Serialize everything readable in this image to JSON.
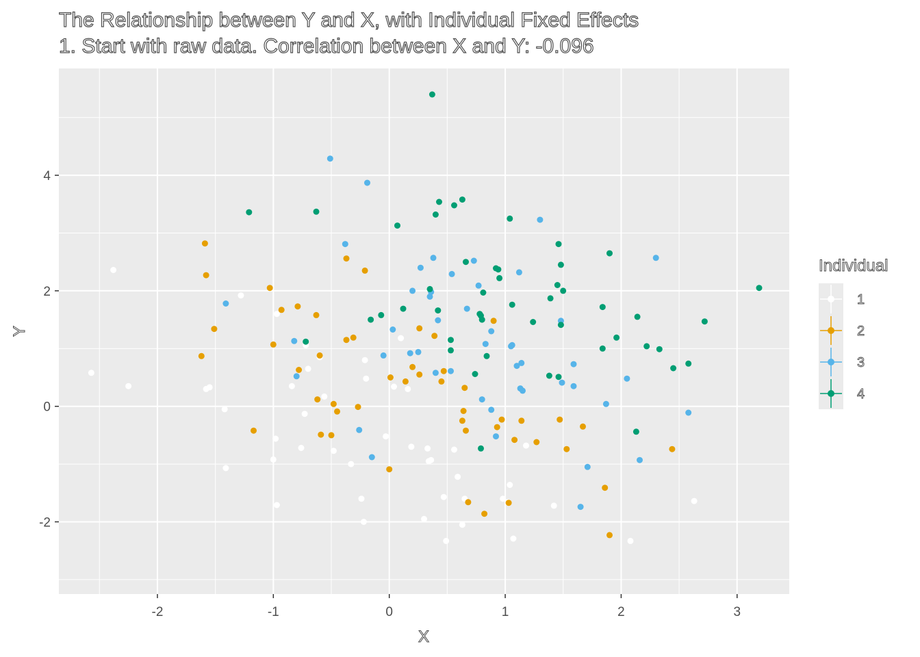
{
  "chart_data": {
    "type": "scatter",
    "title": "The Relationship between Y and X, with Individual Fixed Effects",
    "subtitle": "1. Start with raw data. Correlation between X and Y: -0.096",
    "xlabel": "X",
    "ylabel": "Y",
    "xlim": [
      -2.85,
      3.45
    ],
    "ylim": [
      -3.25,
      5.85
    ],
    "xticks": [
      -2,
      -1,
      0,
      1,
      2,
      3
    ],
    "yticks": [
      -2,
      0,
      2,
      4
    ],
    "grid": true,
    "background_color": "#ebebeb",
    "legend": {
      "title": "Individual",
      "position": "right",
      "entries": [
        "1",
        "2",
        "3",
        "4"
      ]
    },
    "series": [
      {
        "name": "1",
        "color": "#ffffff",
        "points": [
          [
            -2.57,
            0.58
          ],
          [
            -2.38,
            2.36
          ],
          [
            -2.25,
            0.35
          ],
          [
            -1.58,
            0.3
          ],
          [
            -1.55,
            0.33
          ],
          [
            -1.42,
            -0.05
          ],
          [
            -1.41,
            -1.07
          ],
          [
            -1.28,
            1.92
          ],
          [
            -1.0,
            -0.92
          ],
          [
            -0.98,
            -0.56
          ],
          [
            -0.97,
            -1.71
          ],
          [
            -0.97,
            1.6
          ],
          [
            -0.84,
            0.35
          ],
          [
            -0.76,
            -0.72
          ],
          [
            -0.73,
            -0.13
          ],
          [
            -0.72,
            1.06
          ],
          [
            -0.7,
            0.65
          ],
          [
            -0.6,
            0.85
          ],
          [
            -0.56,
            0.17
          ],
          [
            -0.48,
            -0.77
          ],
          [
            -0.33,
            -1.0
          ],
          [
            -0.24,
            -1.6
          ],
          [
            -0.22,
            -2.0
          ],
          [
            -0.21,
            0.8
          ],
          [
            -0.2,
            0.48
          ],
          [
            -0.03,
            -0.52
          ],
          [
            0.04,
            0.34
          ],
          [
            0.1,
            1.18
          ],
          [
            0.16,
            0.3
          ],
          [
            0.19,
            -0.7
          ],
          [
            0.3,
            -1.95
          ],
          [
            0.33,
            -0.73
          ],
          [
            0.34,
            -0.95
          ],
          [
            0.36,
            -0.93
          ],
          [
            0.47,
            -1.57
          ],
          [
            0.49,
            -2.33
          ],
          [
            0.56,
            -0.75
          ],
          [
            0.59,
            -1.22
          ],
          [
            0.63,
            -2.05
          ],
          [
            0.65,
            -1.6
          ],
          [
            0.98,
            -1.6
          ],
          [
            1.02,
            -1.66
          ],
          [
            1.04,
            -1.36
          ],
          [
            1.07,
            -2.29
          ],
          [
            1.18,
            -0.68
          ],
          [
            1.42,
            -1.72
          ],
          [
            2.08,
            -2.33
          ],
          [
            2.63,
            -1.64
          ]
        ]
      },
      {
        "name": "2",
        "color": "#e69f00",
        "points": [
          [
            -1.62,
            0.87
          ],
          [
            -1.59,
            2.82
          ],
          [
            -1.58,
            2.27
          ],
          [
            -1.51,
            1.34
          ],
          [
            -1.17,
            -0.42
          ],
          [
            -1.03,
            2.05
          ],
          [
            -1.0,
            1.07
          ],
          [
            -0.93,
            1.67
          ],
          [
            -0.79,
            1.73
          ],
          [
            -0.78,
            0.63
          ],
          [
            -0.63,
            1.58
          ],
          [
            -0.62,
            0.12
          ],
          [
            -0.6,
            0.88
          ],
          [
            -0.59,
            -0.49
          ],
          [
            -0.5,
            -0.5
          ],
          [
            -0.48,
            0.04
          ],
          [
            -0.45,
            -0.09
          ],
          [
            -0.37,
            2.56
          ],
          [
            -0.37,
            1.15
          ],
          [
            -0.31,
            1.19
          ],
          [
            -0.27,
            -0.01
          ],
          [
            -0.21,
            2.35
          ],
          [
            0.0,
            -1.09
          ],
          [
            0.01,
            0.5
          ],
          [
            0.14,
            0.43
          ],
          [
            0.2,
            0.68
          ],
          [
            0.26,
            0.55
          ],
          [
            0.26,
            1.35
          ],
          [
            0.39,
            1.22
          ],
          [
            0.45,
            0.43
          ],
          [
            0.47,
            0.61
          ],
          [
            0.63,
            -0.25
          ],
          [
            0.64,
            -0.08
          ],
          [
            0.65,
            0.32
          ],
          [
            0.66,
            -0.42
          ],
          [
            0.68,
            -1.66
          ],
          [
            0.82,
            -1.86
          ],
          [
            0.9,
            1.48
          ],
          [
            0.93,
            -0.36
          ],
          [
            0.97,
            -0.23
          ],
          [
            1.03,
            -1.67
          ],
          [
            1.08,
            -0.58
          ],
          [
            1.14,
            -0.25
          ],
          [
            1.27,
            -0.62
          ],
          [
            1.47,
            -0.23
          ],
          [
            1.53,
            -0.74
          ],
          [
            1.67,
            -0.35
          ],
          [
            1.86,
            -1.41
          ],
          [
            1.9,
            -2.23
          ],
          [
            2.44,
            -0.74
          ]
        ]
      },
      {
        "name": "3",
        "color": "#56b4e9",
        "points": [
          [
            -1.41,
            1.78
          ],
          [
            -0.82,
            1.13
          ],
          [
            -0.8,
            0.52
          ],
          [
            -0.51,
            4.29
          ],
          [
            -0.38,
            2.81
          ],
          [
            -0.26,
            -0.41
          ],
          [
            -0.19,
            3.87
          ],
          [
            -0.15,
            -0.88
          ],
          [
            -0.05,
            0.88
          ],
          [
            0.03,
            1.33
          ],
          [
            0.18,
            0.92
          ],
          [
            0.2,
            2.0
          ],
          [
            0.25,
            0.94
          ],
          [
            0.27,
            2.4
          ],
          [
            0.35,
            1.9
          ],
          [
            0.36,
            1.98
          ],
          [
            0.38,
            2.57
          ],
          [
            0.4,
            0.58
          ],
          [
            0.42,
            1.49
          ],
          [
            0.53,
            0.61
          ],
          [
            0.54,
            2.29
          ],
          [
            0.67,
            1.69
          ],
          [
            0.73,
            2.52
          ],
          [
            0.77,
            2.09
          ],
          [
            0.8,
            0.12
          ],
          [
            0.83,
            1.08
          ],
          [
            0.88,
            -0.06
          ],
          [
            0.88,
            1.3
          ],
          [
            0.92,
            -0.52
          ],
          [
            1.05,
            1.04
          ],
          [
            1.06,
            1.06
          ],
          [
            1.1,
            0.7
          ],
          [
            1.12,
            2.32
          ],
          [
            1.13,
            0.31
          ],
          [
            1.14,
            0.75
          ],
          [
            1.15,
            0.27
          ],
          [
            1.3,
            3.23
          ],
          [
            1.48,
            1.48
          ],
          [
            1.49,
            0.41
          ],
          [
            1.59,
            0.35
          ],
          [
            1.59,
            0.73
          ],
          [
            1.65,
            -1.74
          ],
          [
            1.71,
            -1.05
          ],
          [
            1.87,
            0.04
          ],
          [
            2.05,
            0.48
          ],
          [
            2.16,
            -0.93
          ],
          [
            2.3,
            2.57
          ],
          [
            2.58,
            -0.11
          ]
        ]
      },
      {
        "name": "4",
        "color": "#009e73",
        "points": [
          [
            -1.21,
            3.36
          ],
          [
            -0.63,
            3.37
          ],
          [
            -0.72,
            1.12
          ],
          [
            -0.16,
            1.5
          ],
          [
            -0.07,
            1.58
          ],
          [
            0.07,
            3.13
          ],
          [
            0.12,
            1.69
          ],
          [
            0.35,
            2.03
          ],
          [
            0.37,
            5.4
          ],
          [
            0.4,
            3.32
          ],
          [
            0.42,
            1.66
          ],
          [
            0.43,
            3.54
          ],
          [
            0.53,
            0.97
          ],
          [
            0.53,
            1.15
          ],
          [
            0.56,
            3.48
          ],
          [
            0.63,
            3.58
          ],
          [
            0.66,
            2.5
          ],
          [
            0.74,
            0.56
          ],
          [
            0.78,
            1.6
          ],
          [
            0.79,
            1.57
          ],
          [
            0.79,
            -0.73
          ],
          [
            0.8,
            1.5
          ],
          [
            0.81,
            1.97
          ],
          [
            0.84,
            0.87
          ],
          [
            0.92,
            2.39
          ],
          [
            0.94,
            2.37
          ],
          [
            0.95,
            2.22
          ],
          [
            1.04,
            3.25
          ],
          [
            1.06,
            1.76
          ],
          [
            1.24,
            1.46
          ],
          [
            1.38,
            0.53
          ],
          [
            1.39,
            1.87
          ],
          [
            1.45,
            2.1
          ],
          [
            1.46,
            0.51
          ],
          [
            1.46,
            2.81
          ],
          [
            1.48,
            1.41
          ],
          [
            1.48,
            2.45
          ],
          [
            1.5,
            2.0
          ],
          [
            1.84,
            1.0
          ],
          [
            1.84,
            1.72
          ],
          [
            1.9,
            2.65
          ],
          [
            1.96,
            1.19
          ],
          [
            2.13,
            -0.44
          ],
          [
            2.14,
            1.55
          ],
          [
            2.22,
            1.04
          ],
          [
            2.33,
            0.99
          ],
          [
            2.45,
            0.66
          ],
          [
            2.58,
            0.74
          ],
          [
            2.72,
            1.47
          ],
          [
            3.19,
            2.05
          ]
        ]
      }
    ]
  }
}
